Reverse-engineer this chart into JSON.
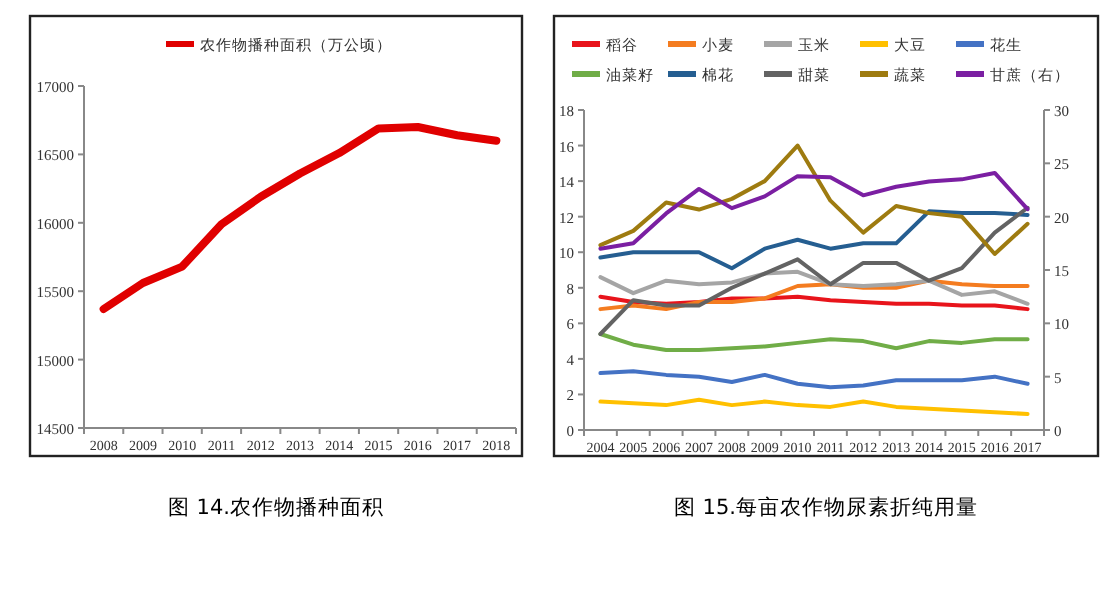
{
  "chart_data": [
    {
      "type": "line",
      "title": "图 14.农作物播种面积",
      "categories": [
        "2008",
        "2009",
        "2010",
        "2011",
        "2012",
        "2013",
        "2014",
        "2015",
        "2016",
        "2017",
        "2018"
      ],
      "series": [
        {
          "name": "农作物播种面积（万公顷）",
          "color": "#e00000",
          "values": [
            15370,
            15560,
            15680,
            15990,
            16190,
            16360,
            16510,
            16690,
            16700,
            16640,
            16600
          ]
        }
      ],
      "ylim": [
        14500,
        17000
      ],
      "yticks": [
        14500,
        15000,
        15500,
        16000,
        16500,
        17000
      ],
      "legend": "top",
      "grid": false
    },
    {
      "type": "line",
      "title": "图 15.每亩农作物尿素折纯用量",
      "categories": [
        "2004",
        "2005",
        "2006",
        "2007",
        "2008",
        "2009",
        "2010",
        "2011",
        "2012",
        "2013",
        "2014",
        "2015",
        "2016",
        "2017"
      ],
      "series": [
        {
          "name": "稻谷",
          "color": "#e8141b",
          "values": [
            7.5,
            7.2,
            7.1,
            7.2,
            7.4,
            7.4,
            7.5,
            7.3,
            7.2,
            7.1,
            7.1,
            7.0,
            7.0,
            6.8
          ]
        },
        {
          "name": "小麦",
          "color": "#f47c20",
          "values": [
            6.8,
            7.0,
            6.8,
            7.2,
            7.2,
            7.4,
            8.1,
            8.2,
            8.0,
            8.0,
            8.4,
            8.2,
            8.1,
            8.1
          ]
        },
        {
          "name": "玉米",
          "color": "#a5a5a5",
          "values": [
            8.6,
            7.7,
            8.4,
            8.2,
            8.3,
            8.8,
            8.9,
            8.2,
            8.1,
            8.2,
            8.4,
            7.6,
            7.8,
            7.1
          ]
        },
        {
          "name": "大豆",
          "color": "#ffc000",
          "values": [
            1.6,
            1.5,
            1.4,
            1.7,
            1.4,
            1.6,
            1.4,
            1.3,
            1.6,
            1.3,
            1.2,
            1.1,
            1.0,
            0.9
          ]
        },
        {
          "name": "花生",
          "color": "#4472c4",
          "values": [
            3.2,
            3.3,
            3.1,
            3.0,
            2.7,
            3.1,
            2.6,
            2.4,
            2.5,
            2.8,
            2.8,
            2.8,
            3.0,
            2.6
          ]
        },
        {
          "name": "油菜籽",
          "color": "#70ad47",
          "values": [
            5.4,
            4.8,
            4.5,
            4.5,
            4.6,
            4.7,
            4.9,
            5.1,
            5.0,
            4.6,
            5.0,
            4.9,
            5.1,
            5.1
          ]
        },
        {
          "name": "棉花",
          "color": "#255e91",
          "values": [
            9.7,
            10.0,
            10.0,
            10.0,
            9.1,
            10.2,
            10.7,
            10.2,
            10.5,
            10.5,
            12.3,
            12.2,
            12.2,
            12.1
          ]
        },
        {
          "name": "甜菜",
          "color": "#636363",
          "values": [
            5.4,
            7.3,
            7.0,
            7.0,
            8.0,
            8.8,
            9.6,
            8.2,
            9.4,
            9.4,
            8.4,
            9.1,
            11.1,
            12.5
          ]
        },
        {
          "name": "蔬菜",
          "color": "#9e7b10",
          "values": [
            10.4,
            11.2,
            12.8,
            12.4,
            13.0,
            14.0,
            16.0,
            12.9,
            11.1,
            12.6,
            12.2,
            12.0,
            9.9,
            11.6
          ]
        },
        {
          "name": "甘蔗（右）",
          "color": "#7b1fa2",
          "axis": "y2",
          "values": [
            17.0,
            17.5,
            20.3,
            22.6,
            20.8,
            21.9,
            23.8,
            23.7,
            22.0,
            22.8,
            23.3,
            23.5,
            24.1,
            20.7
          ]
        }
      ],
      "ylim": [
        0,
        18
      ],
      "yticks": [
        0,
        2,
        4,
        6,
        8,
        10,
        12,
        14,
        16,
        18
      ],
      "y2lim": [
        0,
        30
      ],
      "y2ticks": [
        0,
        5,
        10,
        15,
        20,
        25,
        30
      ],
      "legend": "top",
      "grid": false
    }
  ]
}
